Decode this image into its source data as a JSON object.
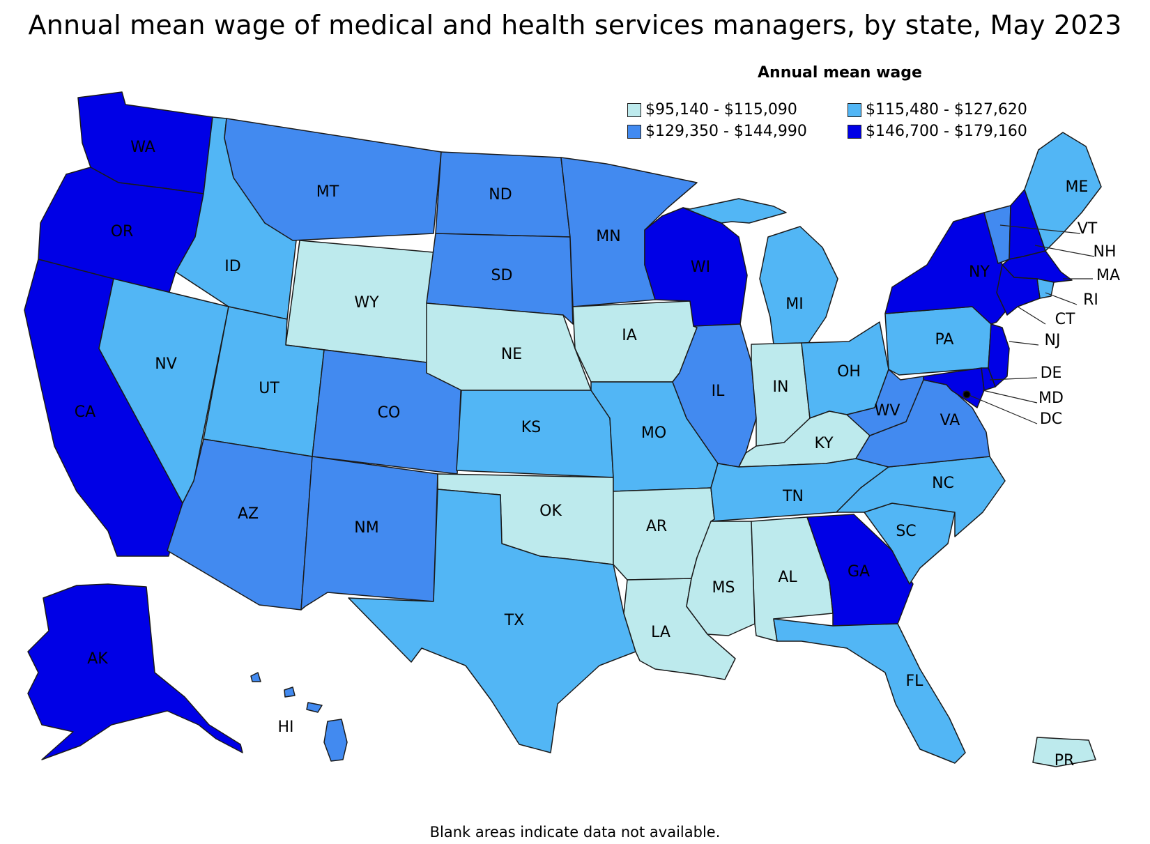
{
  "title": "Annual mean wage of medical and health services managers, by state, May 2023",
  "legend": {
    "title": "Annual mean wage",
    "bins": [
      {
        "label": "$95,140 - $115,090",
        "color": "#bdeaed"
      },
      {
        "label": "$115,480 - $127,620",
        "color": "#52b6f5"
      },
      {
        "label": "$129,350 - $144,990",
        "color": "#428af0"
      },
      {
        "label": "$146,700 - $179,160",
        "color": "#0000e6"
      }
    ]
  },
  "footnote": "Blank areas indicate data not available.",
  "states": [
    {
      "code": "WA",
      "bin": 3
    },
    {
      "code": "OR",
      "bin": 3
    },
    {
      "code": "CA",
      "bin": 3
    },
    {
      "code": "NV",
      "bin": 1
    },
    {
      "code": "ID",
      "bin": 1
    },
    {
      "code": "MT",
      "bin": 2
    },
    {
      "code": "WY",
      "bin": 0
    },
    {
      "code": "UT",
      "bin": 1
    },
    {
      "code": "AZ",
      "bin": 2
    },
    {
      "code": "CO",
      "bin": 2
    },
    {
      "code": "NM",
      "bin": 2
    },
    {
      "code": "ND",
      "bin": 2
    },
    {
      "code": "SD",
      "bin": 2
    },
    {
      "code": "NE",
      "bin": 0
    },
    {
      "code": "KS",
      "bin": 1
    },
    {
      "code": "OK",
      "bin": 0
    },
    {
      "code": "TX",
      "bin": 1
    },
    {
      "code": "MN",
      "bin": 2
    },
    {
      "code": "IA",
      "bin": 0
    },
    {
      "code": "MO",
      "bin": 1
    },
    {
      "code": "AR",
      "bin": 0
    },
    {
      "code": "LA",
      "bin": 0
    },
    {
      "code": "WI",
      "bin": 3
    },
    {
      "code": "IL",
      "bin": 2
    },
    {
      "code": "MI",
      "bin": 1
    },
    {
      "code": "IN",
      "bin": 0
    },
    {
      "code": "OH",
      "bin": 1
    },
    {
      "code": "KY",
      "bin": 0
    },
    {
      "code": "TN",
      "bin": 1
    },
    {
      "code": "MS",
      "bin": 0
    },
    {
      "code": "AL",
      "bin": 0
    },
    {
      "code": "GA",
      "bin": 3
    },
    {
      "code": "FL",
      "bin": 1
    },
    {
      "code": "SC",
      "bin": 1
    },
    {
      "code": "NC",
      "bin": 1
    },
    {
      "code": "VA",
      "bin": 2
    },
    {
      "code": "WV",
      "bin": 2
    },
    {
      "code": "PA",
      "bin": 1
    },
    {
      "code": "NY",
      "bin": 3
    },
    {
      "code": "VT",
      "bin": 2
    },
    {
      "code": "NH",
      "bin": 3
    },
    {
      "code": "ME",
      "bin": 1
    },
    {
      "code": "MA",
      "bin": 3
    },
    {
      "code": "RI",
      "bin": 1
    },
    {
      "code": "CT",
      "bin": 3
    },
    {
      "code": "NJ",
      "bin": 3
    },
    {
      "code": "DE",
      "bin": 3
    },
    {
      "code": "MD",
      "bin": 3
    },
    {
      "code": "DC",
      "bin": 3
    },
    {
      "code": "AK",
      "bin": 3
    },
    {
      "code": "HI",
      "bin": 2
    },
    {
      "code": "PR",
      "bin": 0
    }
  ]
}
